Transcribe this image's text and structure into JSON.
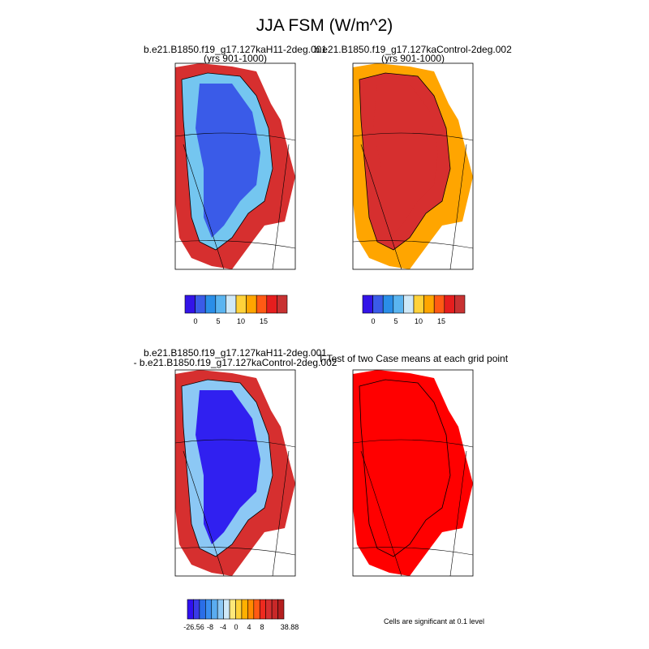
{
  "title": "JJA FSM (W/m^2)",
  "panels": [
    {
      "title": [
        "b.e21.B1850.f19_g17.127kaH11-2deg.001",
        "(yrs 901-1000)"
      ]
    },
    {
      "title": [
        "b.e21.B1850.f19_g17.127kaControl-2deg.002",
        "(yrs 901-1000)"
      ]
    },
    {
      "title": [
        "b.e21.B1850.f19_g17.127kaH11-2deg.001",
        "- b.e21.B1850.f19_g17.127kaControl-2deg.002"
      ]
    },
    {
      "title": [
        "T-Test of two Case means at each grid point"
      ]
    }
  ],
  "colorbars": [
    {
      "labels": [
        "0",
        "5",
        "10",
        "15"
      ]
    },
    {
      "labels": [
        "0",
        "5",
        "10",
        "15"
      ]
    },
    {
      "labels": [
        "-26.56",
        "-8",
        "-4",
        "0",
        "4",
        "8",
        "38.88"
      ]
    }
  ],
  "note": "Cells are significant at 0.1 level"
}
